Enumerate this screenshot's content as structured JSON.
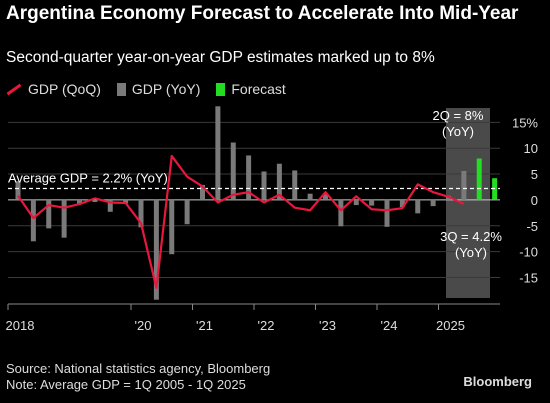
{
  "header": {
    "title": "Argentina Economy Forecast to Accelerate Into Mid-Year",
    "subtitle": "Second-quarter year-on-year GDP estimates marked up to 8%"
  },
  "legend": [
    {
      "label": "GDP (QoQ)",
      "kind": "line",
      "color": "#e8173d"
    },
    {
      "label": "GDP (YoY)",
      "kind": "bar",
      "color": "#7a7a7a"
    },
    {
      "label": "Forecast",
      "kind": "bar",
      "color": "#22dd22"
    }
  ],
  "annotations": {
    "average": "Average GDP = 2.2% (YoY)",
    "q2_line1": "2Q = 8%",
    "q2_line2": "(YoY)",
    "q3_line1": "3Q = 4.2%",
    "q3_line2": "(YoY)"
  },
  "footer": {
    "source": "Source: National statistics agency, Bloomberg",
    "note": "Note: Average GDP = 1Q 2005 - 1Q 2025",
    "brand": "Bloomberg"
  },
  "chart_data": {
    "type": "bar",
    "x_tick_labels": [
      "2018",
      "'20",
      "'21",
      "'22",
      "'23",
      "'24",
      "2025"
    ],
    "y_ticks": [
      15,
      10,
      5,
      0,
      -5,
      -10,
      -15
    ],
    "y_tick_labels": [
      "15%",
      "10",
      "5",
      "0",
      "-5",
      "-10",
      "-15"
    ],
    "ylim": [
      -18,
      17
    ],
    "xlim": [
      2018.0,
      2026.0
    ],
    "average_yoy": 2.2,
    "average_label": "Average GDP = 2.2% (YoY)",
    "colors": {
      "qoq": "#e8173d",
      "yoy": "#7a7a7a",
      "forecast": "#22dd22",
      "band": "#4a4a4a"
    },
    "forecast_band": [
      2025.875,
      2026.0
    ],
    "series": [
      {
        "name": "GDP (YoY)",
        "x": [
          2018.0,
          2018.25,
          2018.5,
          2018.75,
          2019.0,
          2019.25,
          2019.5,
          2019.75,
          2020.0,
          2020.25,
          2020.5,
          2020.75,
          2021.0,
          2021.25,
          2021.5,
          2021.75,
          2022.0,
          2022.25,
          2022.5,
          2022.75,
          2023.0,
          2023.25,
          2023.5,
          2023.75,
          2024.0,
          2024.25,
          2024.5,
          2024.75,
          2025.0,
          2025.25
        ],
        "values": [
          3.6,
          -8.0,
          -5.5,
          -7.3,
          -0.8,
          -0.4,
          -2.3,
          -0.7,
          -5.3,
          -19.3,
          -10.5,
          -4.7,
          2.9,
          18.1,
          11.1,
          8.6,
          5.5,
          7.0,
          5.7,
          1.2,
          1.1,
          -5.1,
          -1.0,
          -1.1,
          -5.2,
          -1.4,
          -2.6,
          -1.2,
          0.8,
          5.6
        ]
      },
      {
        "name": "GDP (QoQ)",
        "x": [
          2018.0,
          2018.25,
          2018.5,
          2018.75,
          2019.0,
          2019.25,
          2019.5,
          2019.75,
          2020.0,
          2020.25,
          2020.5,
          2020.75,
          2021.0,
          2021.25,
          2021.5,
          2021.75,
          2022.0,
          2022.25,
          2022.5,
          2022.75,
          2023.0,
          2023.25,
          2023.5,
          2023.75,
          2024.0,
          2024.25,
          2024.5,
          2024.75,
          2025.0,
          2025.25
        ],
        "values": [
          0.8,
          -3.5,
          -1.0,
          -1.5,
          -0.8,
          0.3,
          -0.5,
          -0.6,
          -4.5,
          -17.0,
          8.5,
          4.5,
          2.6,
          -0.5,
          1.0,
          1.5,
          -0.5,
          1.0,
          -1.5,
          -2.0,
          1.5,
          -2.0,
          0.7,
          -1.8,
          -2.0,
          -1.6,
          3.0,
          1.5,
          0.6,
          -0.8
        ]
      },
      {
        "name": "Forecast",
        "x": [
          2025.5,
          2025.75
        ],
        "values": [
          8.0,
          4.2
        ]
      }
    ]
  }
}
